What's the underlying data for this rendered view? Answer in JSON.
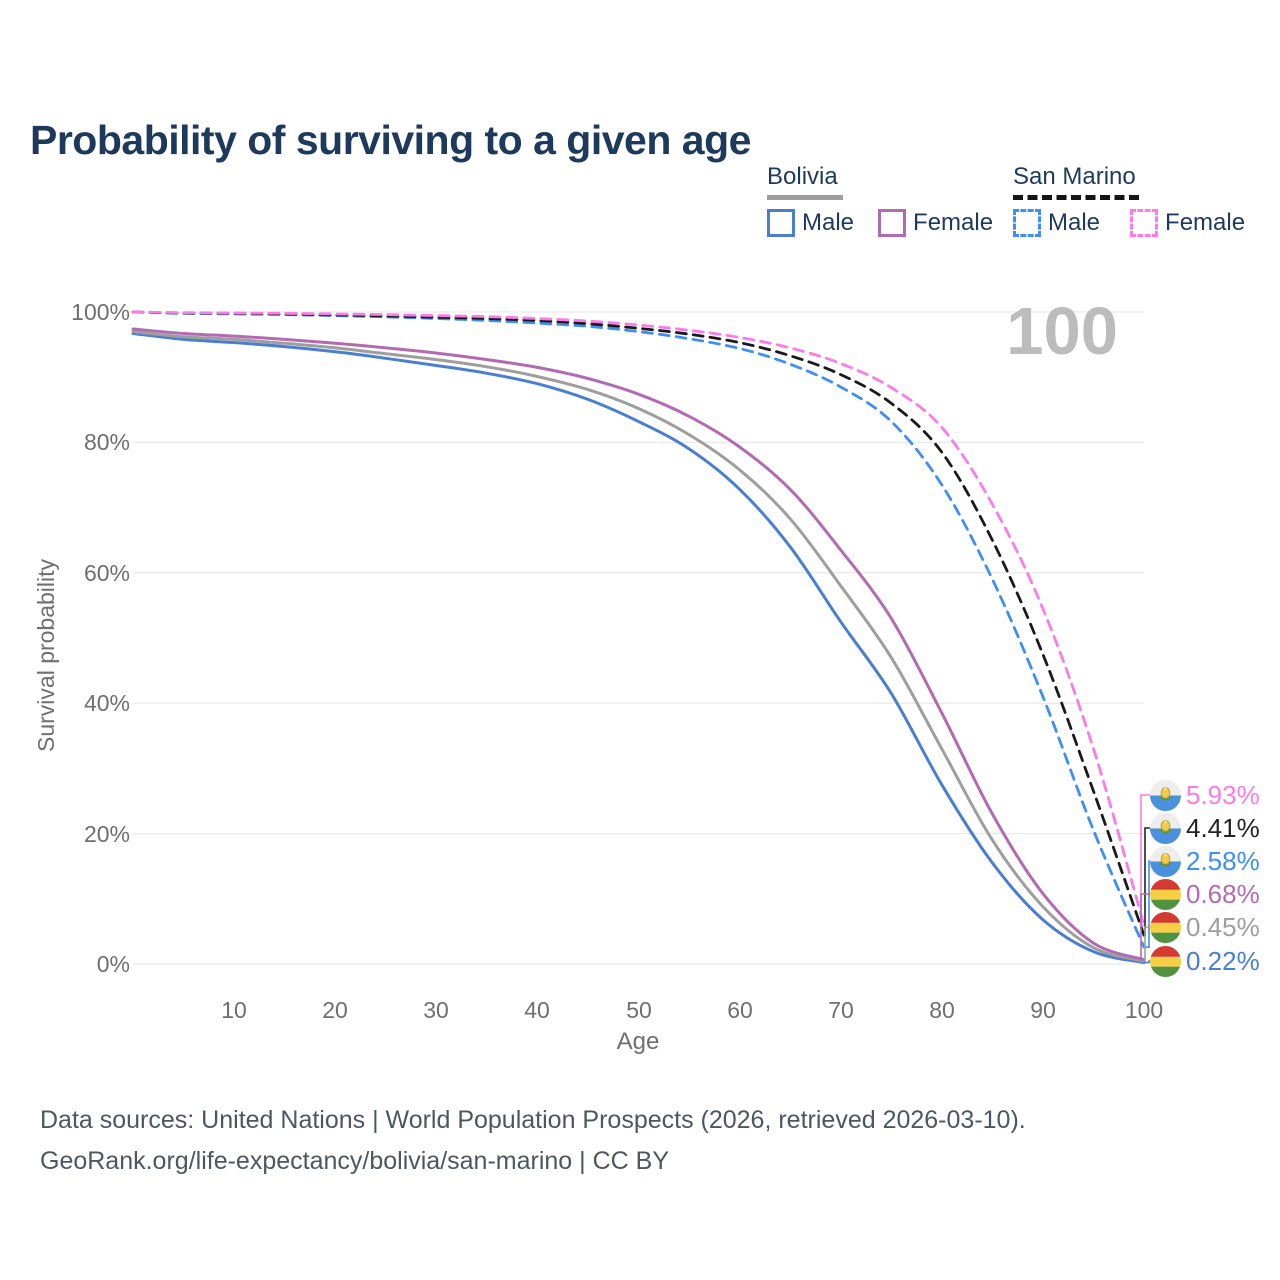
{
  "title": "Probability of surviving to a given age",
  "watermark": "100",
  "legend": {
    "groups": [
      {
        "name": "Bolivia",
        "line_style": "solid",
        "underline_color": "#9e9e9e",
        "items": [
          {
            "label": "Male",
            "color": "#4a7ed0"
          },
          {
            "label": "Female",
            "color": "#b26bb2"
          }
        ]
      },
      {
        "name": "San Marino",
        "line_style": "dashed",
        "underline_color": "#141414",
        "items": [
          {
            "label": "Male",
            "color": "#3f8ef3"
          },
          {
            "label": "Female",
            "color": "#fb7ce8"
          }
        ]
      }
    ]
  },
  "chart_data": {
    "type": "line",
    "title": "Probability of surviving to a given age",
    "xlabel": "Age",
    "ylabel": "Survival probability",
    "xlim": [
      0,
      100
    ],
    "ylim": [
      0,
      100
    ],
    "grid": "horizontal",
    "grid_color": "#e9e9e9",
    "x": [
      0,
      5,
      10,
      15,
      20,
      25,
      30,
      35,
      40,
      45,
      50,
      55,
      60,
      65,
      70,
      75,
      80,
      85,
      90,
      95,
      100
    ],
    "xticks": [
      {
        "value": 10,
        "label": "10"
      },
      {
        "value": 20,
        "label": "20"
      },
      {
        "value": 30,
        "label": "30"
      },
      {
        "value": 40,
        "label": "40"
      },
      {
        "value": 50,
        "label": "50"
      },
      {
        "value": 60,
        "label": "60"
      },
      {
        "value": 70,
        "label": "70"
      },
      {
        "value": 80,
        "label": "80"
      },
      {
        "value": 90,
        "label": "90"
      },
      {
        "value": 100,
        "label": "100"
      }
    ],
    "yticks": [
      {
        "value": 0,
        "label": "0%"
      },
      {
        "value": 20,
        "label": "20%"
      },
      {
        "value": 40,
        "label": "40%"
      },
      {
        "value": 60,
        "label": "60%"
      },
      {
        "value": 80,
        "label": "80%"
      },
      {
        "value": 100,
        "label": "100%"
      }
    ],
    "series": [
      {
        "name": "San Marino Female",
        "country": "San Marino",
        "sex": "Female",
        "color": "#fb7ce8",
        "dash": true,
        "end_label": "5.93%",
        "values": [
          100,
          99.9,
          99.85,
          99.8,
          99.7,
          99.6,
          99.45,
          99.3,
          99.0,
          98.6,
          98.0,
          97.2,
          96.1,
          94.5,
          92.1,
          88.4,
          82.3,
          70.5,
          54.5,
          33.0,
          5.93
        ]
      },
      {
        "name": "San Marino All",
        "country": "San Marino",
        "sex": "All",
        "color": "#1a1a1a",
        "dash": true,
        "end_label": "4.41%",
        "values": [
          100,
          99.85,
          99.8,
          99.7,
          99.55,
          99.4,
          99.2,
          99.0,
          98.7,
          98.2,
          97.5,
          96.6,
          95.3,
          93.3,
          90.4,
          86.0,
          78.5,
          65.0,
          47.5,
          26.5,
          4.41
        ]
      },
      {
        "name": "San Marino Male",
        "country": "San Marino",
        "sex": "Male",
        "color": "#3f8ef3",
        "dash": true,
        "end_label": "2.58%",
        "values": [
          100,
          99.8,
          99.7,
          99.6,
          99.45,
          99.25,
          99.0,
          98.7,
          98.3,
          97.8,
          97.0,
          95.9,
          94.4,
          92.0,
          88.5,
          83.2,
          73.5,
          59.0,
          41.0,
          20.5,
          2.58
        ]
      },
      {
        "name": "Bolivia Female",
        "country": "Bolivia",
        "sex": "Female",
        "color": "#b26bb2",
        "dash": false,
        "end_label": "0.68%",
        "values": [
          97.4,
          96.7,
          96.3,
          95.8,
          95.2,
          94.5,
          93.7,
          92.7,
          91.5,
          89.8,
          87.4,
          84.0,
          79.3,
          72.8,
          63.5,
          53.0,
          38.5,
          23.0,
          10.8,
          3.2,
          0.68
        ]
      },
      {
        "name": "Bolivia All",
        "country": "Bolivia",
        "sex": "All",
        "color": "#9e9e9e",
        "dash": false,
        "end_label": "0.45%",
        "values": [
          97.0,
          96.2,
          95.8,
          95.2,
          94.5,
          93.6,
          92.7,
          91.6,
          90.1,
          88.1,
          85.2,
          81.2,
          75.8,
          68.3,
          58.0,
          47.0,
          33.0,
          19.0,
          8.8,
          2.5,
          0.45
        ]
      },
      {
        "name": "Bolivia Male",
        "country": "Bolivia",
        "sex": "Male",
        "color": "#4a7ed0",
        "dash": false,
        "end_label": "0.22%",
        "values": [
          96.7,
          95.8,
          95.3,
          94.7,
          93.9,
          92.9,
          91.8,
          90.6,
          89.0,
          86.6,
          83.2,
          79.0,
          72.8,
          64.0,
          52.5,
          41.5,
          27.5,
          15.5,
          6.8,
          1.9,
          0.22
        ]
      }
    ]
  },
  "end_labels": [
    {
      "text": "5.93%",
      "color": "#fd7be2",
      "flag": "san-marino"
    },
    {
      "text": "4.41%",
      "color": "#222222",
      "flag": "san-marino"
    },
    {
      "text": "2.58%",
      "color": "#3f8ef3",
      "flag": "san-marino"
    },
    {
      "text": "0.68%",
      "color": "#b26bb2",
      "flag": "bolivia"
    },
    {
      "text": "0.45%",
      "color": "#9e9e9e",
      "flag": "bolivia"
    },
    {
      "text": "0.22%",
      "color": "#4a7ed0",
      "flag": "bolivia"
    }
  ],
  "footer": {
    "line1": "Data sources: United Nations | World Population Prospects (2026, retrieved 2026-03-10).",
    "line2": "GeoRank.org/life-expectancy/bolivia/san-marino | CC BY"
  }
}
